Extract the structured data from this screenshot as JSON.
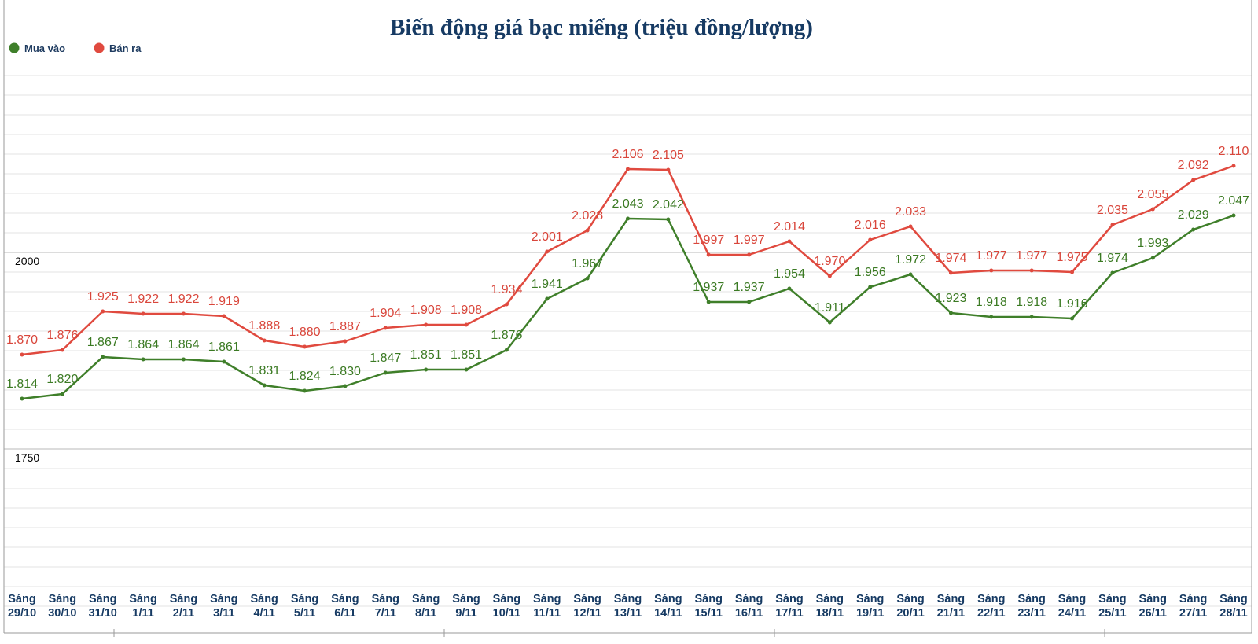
{
  "chart_data": {
    "type": "line",
    "title": "Biến động giá bạc miếng (triệu đồng/lượng)",
    "xlabel": "",
    "ylabel": "",
    "ylim": [
      1550,
      2250
    ],
    "y_ticks": [
      {
        "value": 2000,
        "label": "2000"
      },
      {
        "value": 1750,
        "label": "1750"
      }
    ],
    "grid": true,
    "legend_position": "top-left",
    "categories": [
      {
        "line1": "Sáng",
        "line2": "29/10"
      },
      {
        "line1": "Sáng",
        "line2": "30/10"
      },
      {
        "line1": "Sáng",
        "line2": "31/10"
      },
      {
        "line1": "Sáng",
        "line2": "1/11"
      },
      {
        "line1": "Sáng",
        "line2": "2/11"
      },
      {
        "line1": "Sáng",
        "line2": "3/11"
      },
      {
        "line1": "Sáng",
        "line2": "4/11"
      },
      {
        "line1": "Sáng",
        "line2": "5/11"
      },
      {
        "line1": "Sáng",
        "line2": "6/11"
      },
      {
        "line1": "Sáng",
        "line2": "7/11"
      },
      {
        "line1": "Sáng",
        "line2": "8/11"
      },
      {
        "line1": "Sáng",
        "line2": "9/11"
      },
      {
        "line1": "Sáng",
        "line2": "10/11"
      },
      {
        "line1": "Sáng",
        "line2": "11/11"
      },
      {
        "line1": "Sáng",
        "line2": "12/11"
      },
      {
        "line1": "Sáng",
        "line2": "13/11"
      },
      {
        "line1": "Sáng",
        "line2": "14/11"
      },
      {
        "line1": "Sáng",
        "line2": "15/11"
      },
      {
        "line1": "Sáng",
        "line2": "16/11"
      },
      {
        "line1": "Sáng",
        "line2": "17/11"
      },
      {
        "line1": "Sáng",
        "line2": "18/11"
      },
      {
        "line1": "Sáng",
        "line2": "19/11"
      },
      {
        "line1": "Sáng",
        "line2": "20/11"
      },
      {
        "line1": "Sáng",
        "line2": "21/11"
      },
      {
        "line1": "Sáng",
        "line2": "22/11"
      },
      {
        "line1": "Sáng",
        "line2": "23/11"
      },
      {
        "line1": "Sáng",
        "line2": "24/11"
      },
      {
        "line1": "Sáng",
        "line2": "25/11"
      },
      {
        "line1": "Sáng",
        "line2": "26/11"
      },
      {
        "line1": "Sáng",
        "line2": "27/11"
      },
      {
        "line1": "Sáng",
        "line2": "28/11"
      }
    ],
    "series": [
      {
        "name": "Bán ra",
        "color": "#e04a3f",
        "label_color": "#d9463b",
        "values": [
          1870,
          1876,
          1925,
          1922,
          1922,
          1919,
          1888,
          1880,
          1887,
          1904,
          1908,
          1908,
          1934,
          2001,
          2028,
          2106,
          2105,
          1997,
          1997,
          2014,
          1970,
          2016,
          2033,
          1974,
          1977,
          1977,
          1975,
          2035,
          2055,
          2092,
          2110
        ],
        "labels": [
          "1.870",
          "1.876",
          "1.925",
          "1.922",
          "1.922",
          "1.919",
          "1.888",
          "1.880",
          "1.887",
          "1.904",
          "1.908",
          "1.908",
          "1.934",
          "2.001",
          "2.028",
          "2.106",
          "2.105",
          "1.997",
          "1.997",
          "2.014",
          "1.970",
          "2.016",
          "2.033",
          "1.974",
          "1.977",
          "1.977",
          "1.975",
          "2.035",
          "2.055",
          "2.092",
          "2.110"
        ]
      },
      {
        "name": "Mua vào",
        "color": "#3f7f2a",
        "label_color": "#3b7a23",
        "values": [
          1814,
          1820,
          1867,
          1864,
          1864,
          1861,
          1831,
          1824,
          1830,
          1847,
          1851,
          1851,
          1876,
          1941,
          1967,
          2043,
          2042,
          1937,
          1937,
          1954,
          1911,
          1956,
          1972,
          1923,
          1918,
          1918,
          1916,
          1974,
          1993,
          2029,
          2047
        ],
        "labels": [
          "1.814",
          "1.820",
          "1.867",
          "1.864",
          "1.864",
          "1.861",
          "1.831",
          "1.824",
          "1.830",
          "1.847",
          "1.851",
          "1.851",
          "1.876",
          "1.941",
          "1.967",
          "2.043",
          "2.042",
          "1.937",
          "1.937",
          "1.954",
          "1.911",
          "1.956",
          "1.972",
          "1.923",
          "1.918",
          "1.918",
          "1.916",
          "1.974",
          "1.993",
          "2.029",
          "2.047"
        ]
      }
    ],
    "legend": [
      {
        "name": "Mua vào",
        "color": "#3f7f2a"
      },
      {
        "name": "Bán ra",
        "color": "#e04a3f"
      }
    ]
  }
}
